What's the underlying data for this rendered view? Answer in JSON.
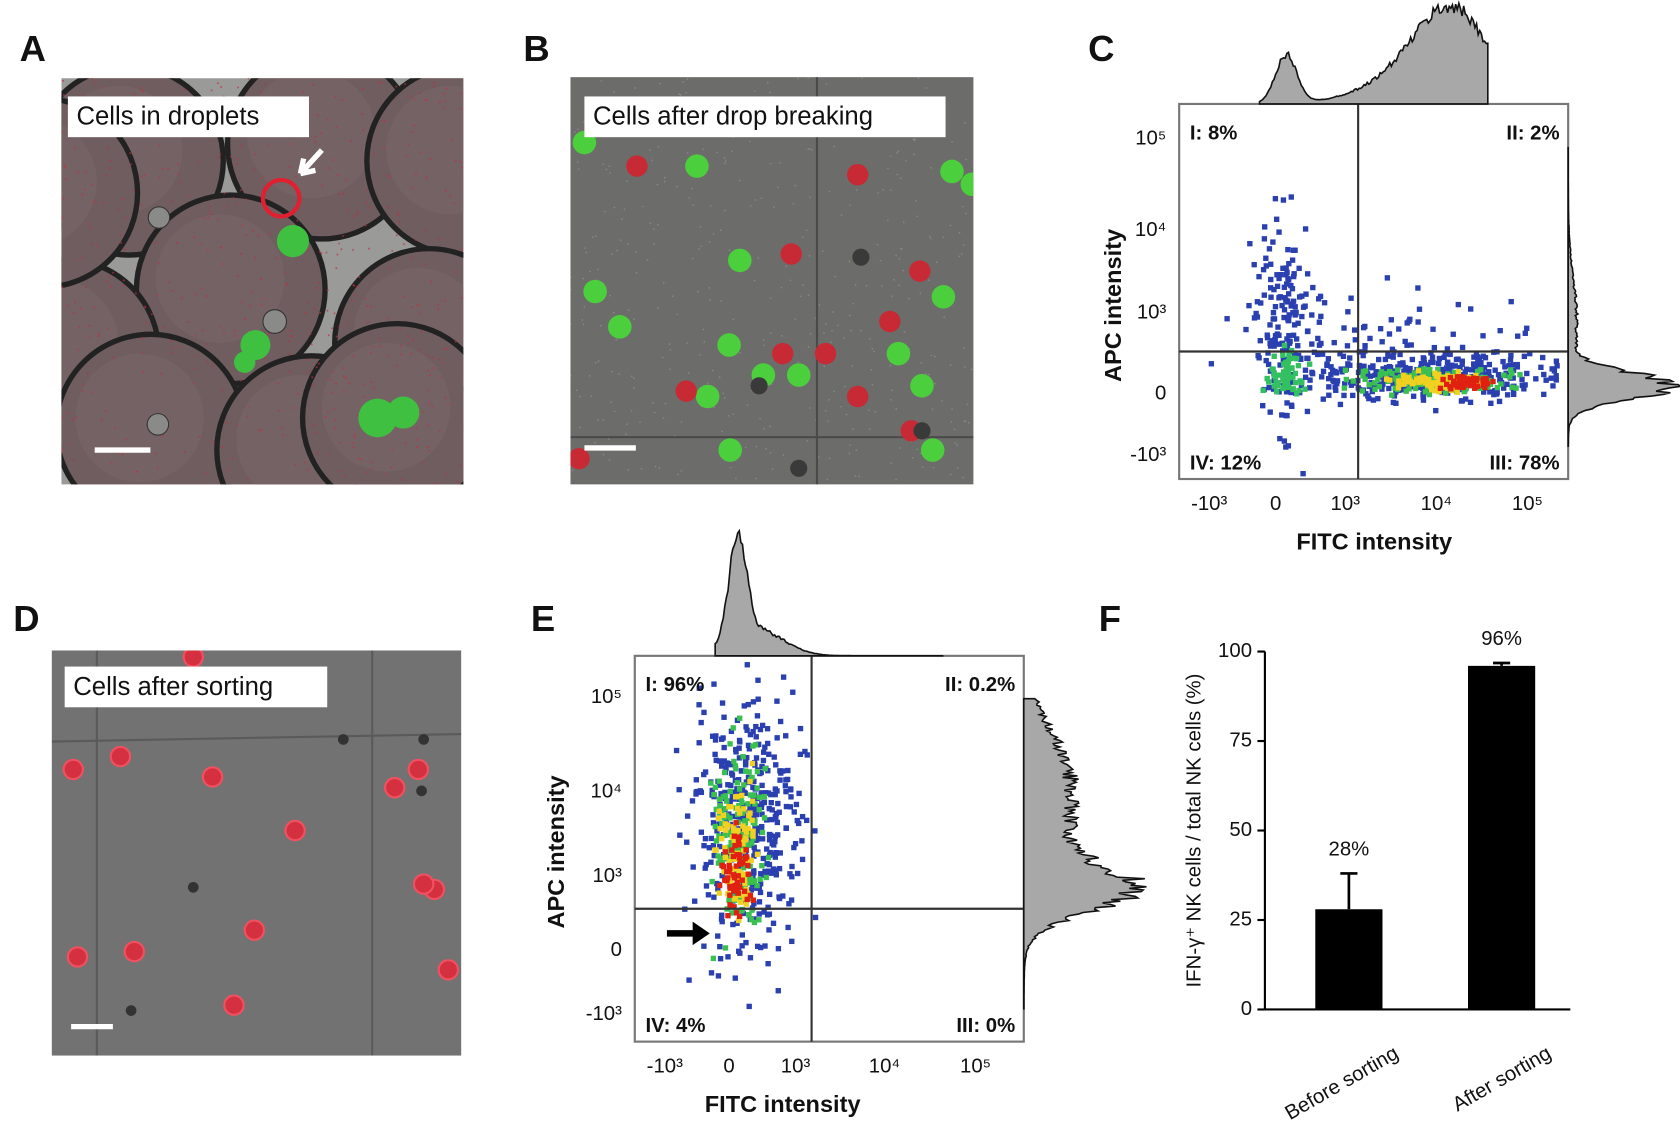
{
  "panels": {
    "A": {
      "label": "A",
      "caption": "Cells in droplets"
    },
    "B": {
      "label": "B",
      "caption": "Cells after drop breaking"
    },
    "C": {
      "label": "C",
      "xlabel": "FITC intensity",
      "ylabel": "APC intensity",
      "xtick_labels": [
        "-10³",
        "0",
        "10³",
        "10⁴",
        "10⁵"
      ],
      "ytick_labels": [
        "10⁵",
        "10⁴",
        "10³",
        "0",
        "-10³"
      ],
      "quadrants": [
        "I: 8%",
        "II: 2%",
        "III: 78%",
        "IV: 12%"
      ]
    },
    "D": {
      "label": "D",
      "caption": "Cells after sorting"
    },
    "E": {
      "label": "E",
      "xlabel": "FITC intensity",
      "ylabel": "APC intensity",
      "xtick_labels": [
        "-10³",
        "0",
        "10³",
        "10⁴",
        "10⁵"
      ],
      "ytick_labels": [
        "10⁵",
        "10⁴",
        "10³",
        "0",
        "-10³"
      ],
      "quadrants": [
        "I: 96%",
        "II: 0.2%",
        "III: 0%",
        "IV: 4%"
      ]
    },
    "F": {
      "label": "F"
    }
  },
  "chart_data": {
    "type": "bar",
    "ylabel": "IFN-γ⁺ NK cells / total NK cells (%)",
    "categories": [
      "Before sorting",
      "After sorting"
    ],
    "values": [
      28,
      96
    ],
    "errors": [
      10,
      0.8
    ],
    "value_labels": [
      "28%",
      "96%"
    ],
    "color": "#000000",
    "ylim": [
      0,
      100
    ],
    "yticks": [
      0,
      25,
      50,
      75,
      100
    ]
  }
}
